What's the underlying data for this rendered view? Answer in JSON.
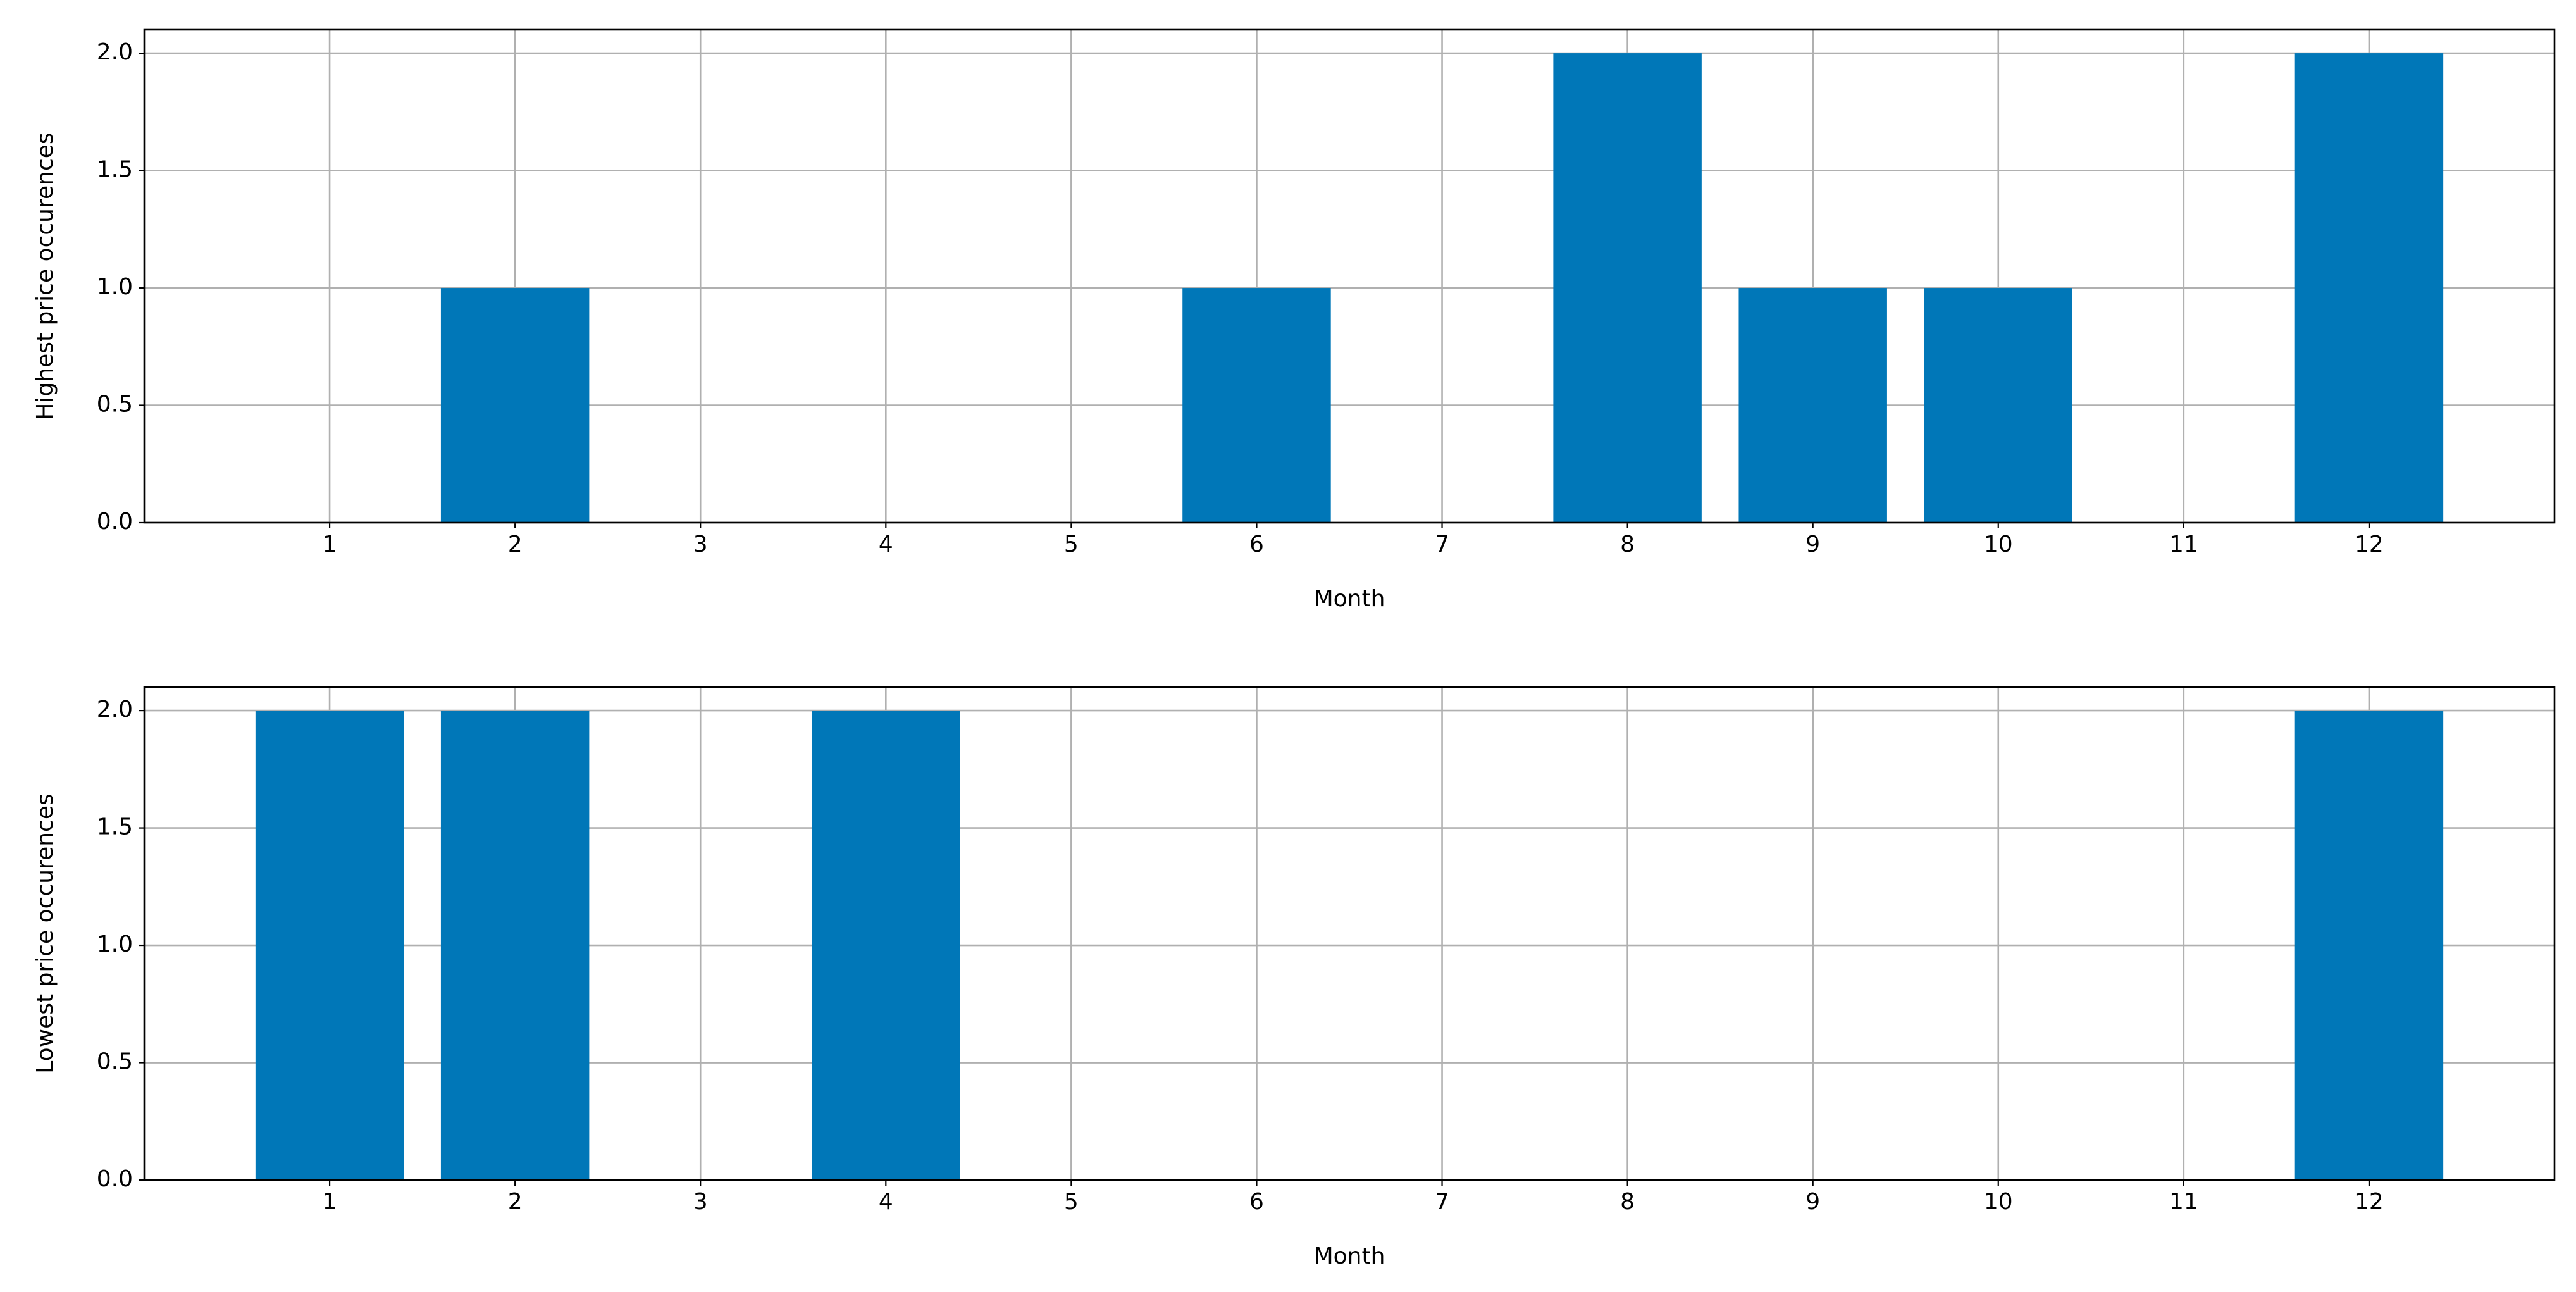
{
  "chart_data": [
    {
      "type": "bar",
      "xlabel": "Month",
      "ylabel": "Highest price occurences",
      "x": [
        1,
        2,
        3,
        4,
        5,
        6,
        7,
        8,
        9,
        10,
        11,
        12
      ],
      "values": [
        0,
        1,
        0,
        0,
        0,
        1,
        0,
        2,
        1,
        1,
        0,
        2
      ],
      "color": "#0077b8",
      "xlim": [
        0,
        13
      ],
      "xticks": [
        1,
        2,
        3,
        4,
        5,
        6,
        7,
        8,
        9,
        10,
        11,
        12
      ],
      "ylim": [
        0,
        2.1
      ],
      "yticks": [
        {
          "value": 0,
          "label": "0.0"
        },
        {
          "value": 0.5,
          "label": "0.5"
        },
        {
          "value": 1,
          "label": "1.0"
        },
        {
          "value": 1.5,
          "label": "1.5"
        },
        {
          "value": 2,
          "label": "2.0"
        }
      ],
      "grid": true
    },
    {
      "type": "bar",
      "xlabel": "Month",
      "ylabel": "Lowest price occurences",
      "x": [
        1,
        2,
        3,
        4,
        5,
        6,
        7,
        8,
        9,
        10,
        11,
        12
      ],
      "values": [
        2,
        2,
        0,
        2,
        0,
        0,
        0,
        0,
        0,
        0,
        0,
        2
      ],
      "color": "#0077b8",
      "xlim": [
        0,
        13
      ],
      "xticks": [
        1,
        2,
        3,
        4,
        5,
        6,
        7,
        8,
        9,
        10,
        11,
        12
      ],
      "ylim": [
        0,
        2.1
      ],
      "yticks": [
        {
          "value": 0,
          "label": "0.0"
        },
        {
          "value": 0.5,
          "label": "0.5"
        },
        {
          "value": 1,
          "label": "1.0"
        },
        {
          "value": 1.5,
          "label": "1.5"
        },
        {
          "value": 2,
          "label": "2.0"
        }
      ],
      "grid": true
    }
  ]
}
